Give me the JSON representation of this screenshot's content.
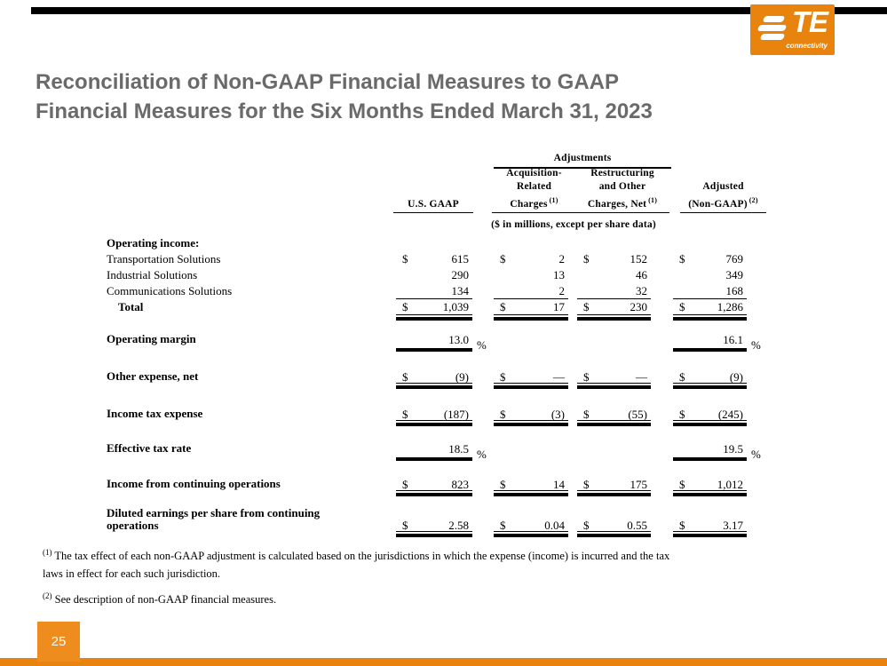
{
  "colors": {
    "orange": "#E8830D",
    "orange_light": "#EE8D1E",
    "title_gray": "#6A6A6A"
  },
  "logo": {
    "text": "TE",
    "subtext": "connectivity"
  },
  "title": {
    "line1": "Reconciliation of Non-GAAP Financial Measures to GAAP",
    "line2": "Financial Measures for the Six Months Ended March 31, 2023"
  },
  "table": {
    "adjustments_label": "Adjustments",
    "units_note": "($ in millions, except per share data)",
    "columns": [
      {
        "lines": [
          "U.S. GAAP"
        ],
        "sup": ""
      },
      {
        "lines": [
          "Acquisition-",
          "Related",
          "Charges"
        ],
        "sup": "(1)"
      },
      {
        "lines": [
          "Restructuring",
          "and Other",
          "Charges, Net"
        ],
        "sup": "(1)"
      },
      {
        "lines": [
          "Adjusted",
          "(Non-GAAP)"
        ],
        "sup": "(2)"
      }
    ],
    "rows": [
      {
        "label": "Operating income:",
        "bold": true,
        "cells": [
          null,
          null,
          null,
          null
        ]
      },
      {
        "label": "Transportation Solutions",
        "dollar": true,
        "cells": [
          "615",
          "2",
          "152",
          "769"
        ]
      },
      {
        "label": "Industrial Solutions",
        "cells": [
          "290",
          "13",
          "46",
          "349"
        ]
      },
      {
        "label": "Communications Solutions",
        "underline": "thin",
        "cells": [
          "134",
          "2",
          "32",
          "168"
        ]
      },
      {
        "label": "Total",
        "bold": true,
        "indent": true,
        "dollar": true,
        "underline": "double",
        "cells": [
          "1,039",
          "17",
          "230",
          "1,286"
        ]
      },
      {
        "label": "Operating margin",
        "bold": true,
        "suffix": "%",
        "underline": "bar",
        "cells": [
          "13.0",
          null,
          null,
          "16.1"
        ]
      },
      {
        "label": "Other expense, net",
        "bold": true,
        "dollar": true,
        "underline": "double",
        "cells": [
          "(9)",
          "—",
          "—",
          "(9)"
        ]
      },
      {
        "label": "Income tax expense",
        "bold": true,
        "dollar": true,
        "underline": "double",
        "cells": [
          "(187)",
          "(3)",
          "(55)",
          "(245)"
        ]
      },
      {
        "label": "Effective tax rate",
        "bold": true,
        "suffix": "%",
        "underline": "bar",
        "cells": [
          "18.5",
          null,
          null,
          "19.5"
        ]
      },
      {
        "label": "Income from continuing operations",
        "bold": true,
        "dollar": true,
        "underline": "double",
        "cells": [
          "823",
          "14",
          "175",
          "1,012"
        ]
      },
      {
        "label": "Diluted earnings per share from continuing operations",
        "bold": true,
        "dollar": true,
        "underline": "double",
        "wrap": true,
        "cells": [
          "2.58",
          "0.04",
          "0.55",
          "3.17"
        ]
      }
    ]
  },
  "footnotes": [
    {
      "sup": "(1)",
      "line1": "The tax effect of each non-GAAP adjustment is calculated based on the jurisdictions in which the expense (income) is incurred and the tax",
      "line2": "laws in effect for each such jurisdiction."
    },
    {
      "sup": "(2)",
      "line1": "See description of non-GAAP financial measures.",
      "line2": ""
    }
  ],
  "page_number": "25"
}
